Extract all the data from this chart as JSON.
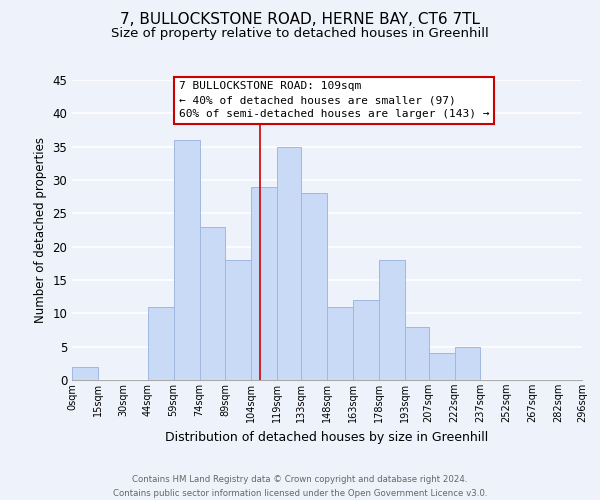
{
  "title": "7, BULLOCKSTONE ROAD, HERNE BAY, CT6 7TL",
  "subtitle": "Size of property relative to detached houses in Greenhill",
  "xlabel": "Distribution of detached houses by size in Greenhill",
  "ylabel": "Number of detached properties",
  "footer_line1": "Contains HM Land Registry data © Crown copyright and database right 2024.",
  "footer_line2": "Contains public sector information licensed under the Open Government Licence v3.0.",
  "bar_left_edges": [
    0,
    15,
    30,
    44,
    59,
    74,
    89,
    104,
    119,
    133,
    148,
    163,
    178,
    193,
    207,
    222,
    237,
    252,
    267,
    282
  ],
  "bar_heights": [
    2,
    0,
    0,
    11,
    36,
    23,
    18,
    29,
    35,
    28,
    11,
    12,
    18,
    8,
    4,
    5,
    0,
    0,
    0,
    0
  ],
  "bar_widths": [
    15,
    14,
    14,
    15,
    15,
    15,
    15,
    15,
    14,
    15,
    15,
    15,
    15,
    14,
    15,
    15,
    15,
    15,
    15,
    14
  ],
  "bar_color": "#c8daf5",
  "bar_edgecolor": "#a0b8e0",
  "tick_labels": [
    "0sqm",
    "15sqm",
    "30sqm",
    "44sqm",
    "59sqm",
    "74sqm",
    "89sqm",
    "104sqm",
    "119sqm",
    "133sqm",
    "148sqm",
    "163sqm",
    "178sqm",
    "193sqm",
    "207sqm",
    "222sqm",
    "237sqm",
    "252sqm",
    "267sqm",
    "282sqm",
    "296sqm"
  ],
  "tick_positions": [
    0,
    15,
    30,
    44,
    59,
    74,
    89,
    104,
    119,
    133,
    148,
    163,
    178,
    193,
    207,
    222,
    237,
    252,
    267,
    282,
    296
  ],
  "ylim": [
    0,
    45
  ],
  "yticks": [
    0,
    5,
    10,
    15,
    20,
    25,
    30,
    35,
    40,
    45
  ],
  "xlim": [
    0,
    296
  ],
  "property_line_x": 109,
  "property_line_color": "#cc0000",
  "annotation_title": "7 BULLOCKSTONE ROAD: 109sqm",
  "annotation_line1": "← 40% of detached houses are smaller (97)",
  "annotation_line2": "60% of semi-detached houses are larger (143) →",
  "annotation_box_color": "#ffffff",
  "annotation_box_edgecolor": "#cc0000",
  "bg_color": "#eef2fa",
  "grid_color": "#ffffff",
  "title_fontsize": 11,
  "subtitle_fontsize": 9.5
}
